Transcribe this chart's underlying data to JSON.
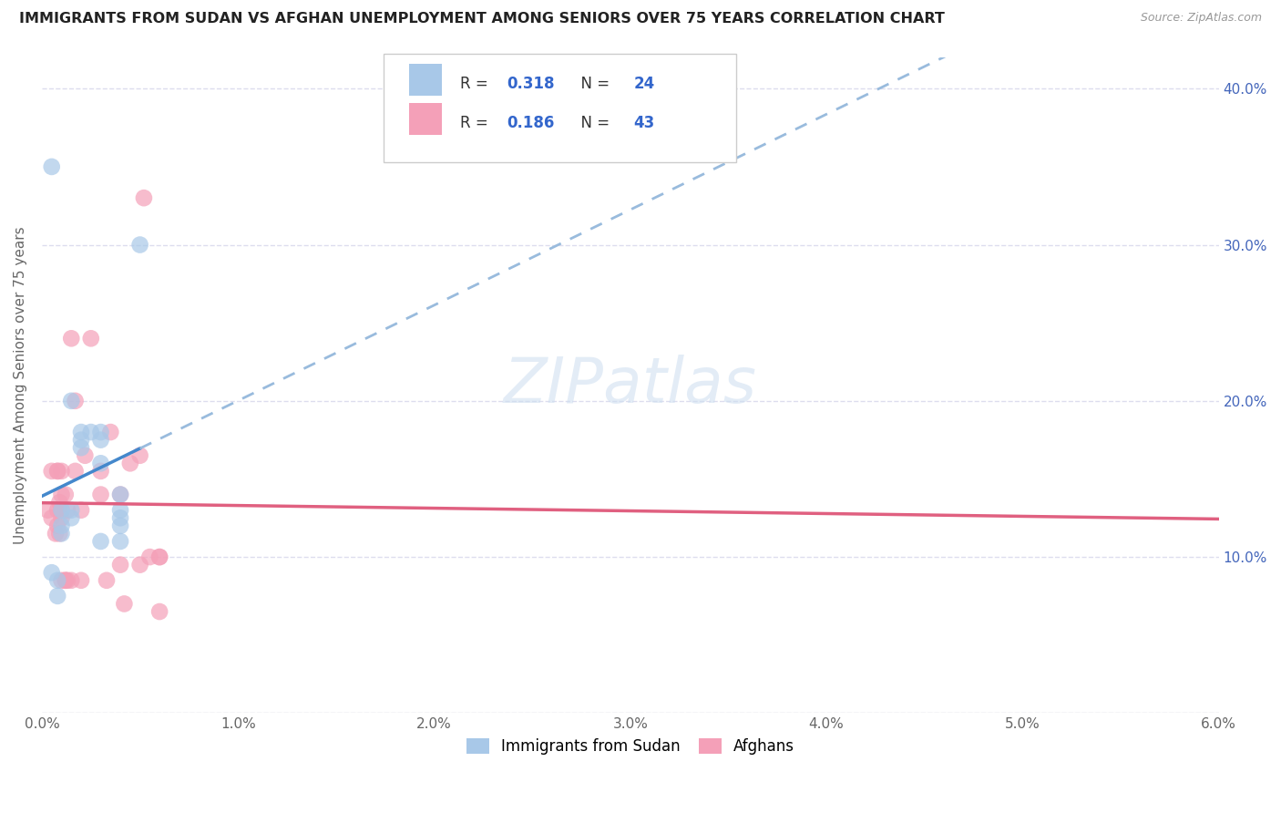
{
  "title": "IMMIGRANTS FROM SUDAN VS AFGHAN UNEMPLOYMENT AMONG SENIORS OVER 75 YEARS CORRELATION CHART",
  "source": "Source: ZipAtlas.com",
  "ylabel": "Unemployment Among Seniors over 75 years",
  "xlim": [
    0.0,
    0.06
  ],
  "ylim": [
    0.0,
    0.42
  ],
  "x_ticks": [
    0.0,
    0.01,
    0.02,
    0.03,
    0.04,
    0.05,
    0.06
  ],
  "x_tick_labels": [
    "0.0%",
    "1.0%",
    "2.0%",
    "3.0%",
    "4.0%",
    "5.0%",
    "6.0%"
  ],
  "y_ticks": [
    0.0,
    0.1,
    0.2,
    0.3,
    0.4
  ],
  "y_tick_labels": [
    "",
    "10.0%",
    "20.0%",
    "30.0%",
    "40.0%"
  ],
  "color_sudan": "#a8c8e8",
  "color_afghan": "#f4a0b8",
  "color_sudan_line": "#4488cc",
  "color_afghan_line": "#e06080",
  "color_sudan_dash": "#99bbdd",
  "background_color": "#ffffff",
  "grid_color": "#ddddee",
  "scatter_size": 180,
  "sudan_x": [
    0.002,
    0.002,
    0.003,
    0.003,
    0.004,
    0.004,
    0.005,
    0.0005,
    0.001,
    0.001,
    0.001,
    0.0015,
    0.0015,
    0.0015,
    0.002,
    0.0025,
    0.003,
    0.003,
    0.004,
    0.004,
    0.004,
    0.0005,
    0.0008,
    0.0008
  ],
  "sudan_y": [
    0.175,
    0.18,
    0.175,
    0.16,
    0.13,
    0.125,
    0.3,
    0.09,
    0.12,
    0.115,
    0.13,
    0.2,
    0.125,
    0.13,
    0.17,
    0.18,
    0.18,
    0.11,
    0.12,
    0.14,
    0.11,
    0.35,
    0.085,
    0.075
  ],
  "afghan_x": [
    0.0003,
    0.0005,
    0.0005,
    0.0007,
    0.0008,
    0.0008,
    0.0009,
    0.0009,
    0.001,
    0.001,
    0.001,
    0.0012,
    0.0012,
    0.0013,
    0.0013,
    0.0015,
    0.0015,
    0.0017,
    0.0017,
    0.002,
    0.002,
    0.0022,
    0.0025,
    0.003,
    0.003,
    0.0033,
    0.0035,
    0.004,
    0.004,
    0.0042,
    0.0045,
    0.005,
    0.005,
    0.0052,
    0.006,
    0.006,
    0.006,
    0.0055,
    0.0008,
    0.0008,
    0.001,
    0.001,
    0.0012
  ],
  "afghan_y": [
    0.13,
    0.155,
    0.125,
    0.115,
    0.13,
    0.12,
    0.115,
    0.135,
    0.13,
    0.085,
    0.125,
    0.14,
    0.085,
    0.13,
    0.085,
    0.085,
    0.24,
    0.155,
    0.2,
    0.13,
    0.085,
    0.165,
    0.24,
    0.155,
    0.14,
    0.085,
    0.18,
    0.14,
    0.095,
    0.07,
    0.16,
    0.095,
    0.165,
    0.33,
    0.1,
    0.065,
    0.1,
    0.1,
    0.155,
    0.155,
    0.14,
    0.155,
    0.085
  ]
}
